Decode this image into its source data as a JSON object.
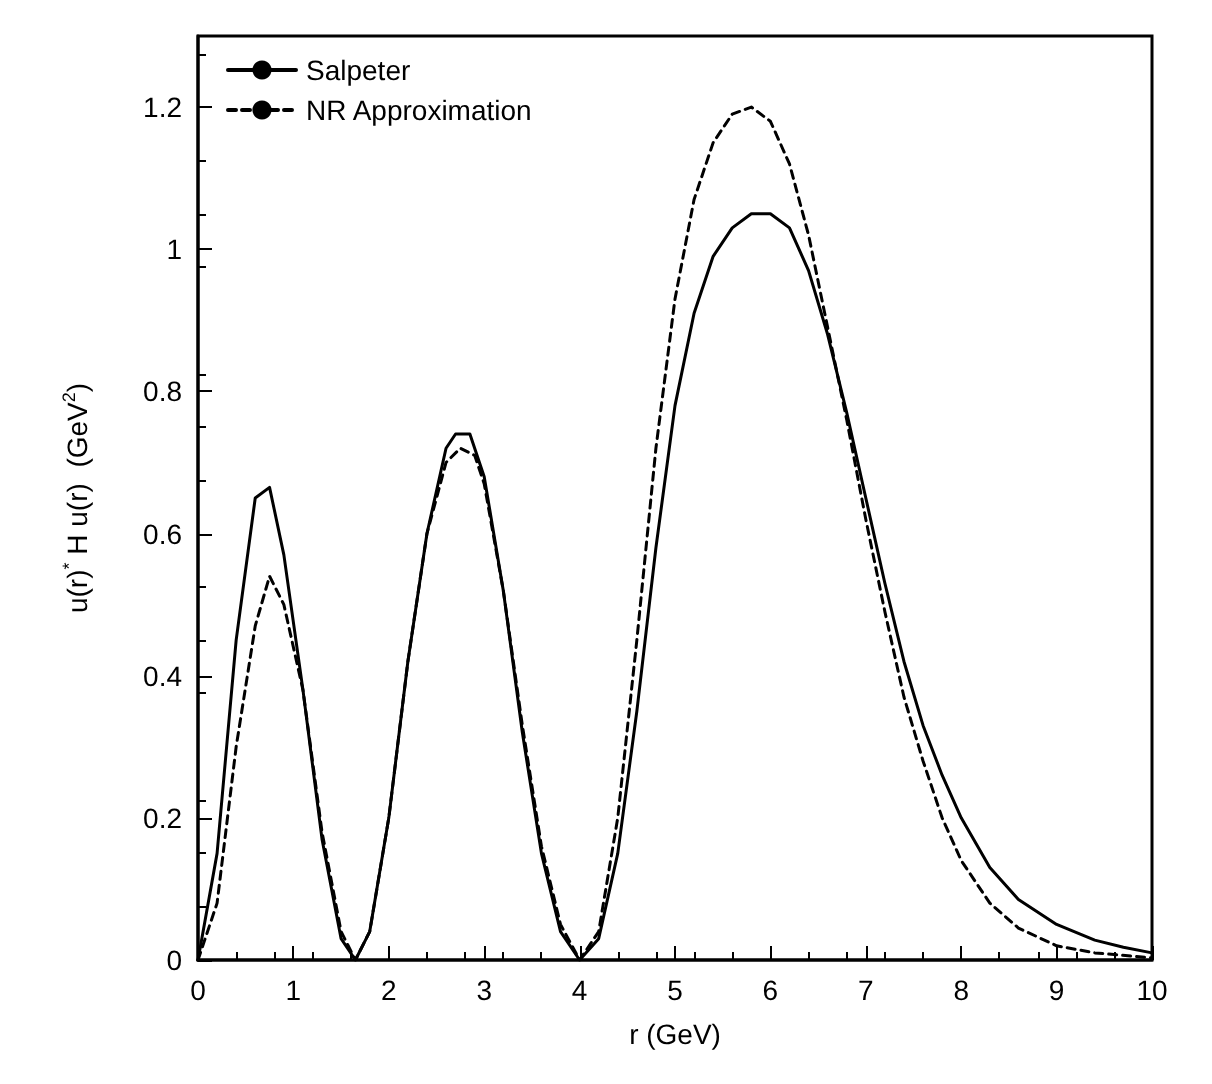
{
  "chart_data": {
    "type": "line",
    "xlabel": "r (GeV)",
    "ylabel": "u(r)$^{*}$ H u(r)  (GeV$^{2}$)",
    "xlim": [
      0,
      10
    ],
    "xticks": [
      0,
      1,
      2,
      3,
      4,
      5,
      6,
      7,
      8,
      9,
      10
    ],
    "ylim": [
      0,
      1.3
    ],
    "yticks": [
      0,
      0.2,
      0.4,
      0.6,
      0.8,
      1,
      1.2
    ],
    "grid": false,
    "legend": "top left",
    "marker": "none",
    "series": [
      {
        "name": "Salpeter",
        "color": "#000000",
        "line_style": "solid",
        "x": [
          0,
          0.2,
          0.4,
          0.6,
          0.75,
          0.9,
          1.1,
          1.3,
          1.5,
          1.65,
          1.8,
          2.0,
          2.2,
          2.4,
          2.6,
          2.7,
          2.85,
          3.0,
          3.2,
          3.4,
          3.6,
          3.8,
          4.0,
          4.2,
          4.4,
          4.6,
          4.8,
          5.0,
          5.2,
          5.4,
          5.6,
          5.8,
          6.0,
          6.2,
          6.4,
          6.6,
          6.8,
          7.0,
          7.2,
          7.4,
          7.6,
          7.8,
          8.0,
          8.3,
          8.6,
          9.0,
          9.4,
          9.7,
          10
        ],
        "values": [
          0,
          0.15,
          0.45,
          0.65,
          0.665,
          0.57,
          0.38,
          0.17,
          0.03,
          0,
          0.04,
          0.2,
          0.42,
          0.6,
          0.72,
          0.74,
          0.74,
          0.68,
          0.52,
          0.32,
          0.15,
          0.04,
          0,
          0.03,
          0.15,
          0.35,
          0.58,
          0.78,
          0.91,
          0.99,
          1.03,
          1.05,
          1.05,
          1.03,
          0.97,
          0.88,
          0.77,
          0.65,
          0.53,
          0.42,
          0.33,
          0.26,
          0.2,
          0.13,
          0.085,
          0.05,
          0.028,
          0.018,
          0.01
        ]
      },
      {
        "name": "NR Approximation",
        "color": "#000000",
        "line_style": "dashed",
        "x": [
          0,
          0.2,
          0.4,
          0.6,
          0.75,
          0.9,
          1.1,
          1.3,
          1.5,
          1.65,
          1.8,
          2.0,
          2.2,
          2.4,
          2.6,
          2.75,
          2.9,
          3.0,
          3.2,
          3.4,
          3.6,
          3.8,
          4.0,
          4.2,
          4.4,
          4.6,
          4.8,
          5.0,
          5.2,
          5.4,
          5.6,
          5.8,
          6.0,
          6.2,
          6.4,
          6.6,
          6.8,
          7.0,
          7.2,
          7.4,
          7.6,
          7.8,
          8.0,
          8.3,
          8.6,
          9.0,
          9.4,
          10
        ],
        "values": [
          0,
          0.08,
          0.3,
          0.47,
          0.54,
          0.5,
          0.38,
          0.18,
          0.04,
          0,
          0.04,
          0.2,
          0.42,
          0.6,
          0.7,
          0.72,
          0.71,
          0.67,
          0.52,
          0.33,
          0.16,
          0.05,
          0,
          0.04,
          0.2,
          0.45,
          0.72,
          0.93,
          1.07,
          1.15,
          1.19,
          1.2,
          1.18,
          1.12,
          1.02,
          0.89,
          0.76,
          0.62,
          0.49,
          0.37,
          0.28,
          0.2,
          0.14,
          0.08,
          0.045,
          0.02,
          0.01,
          0.003
        ]
      }
    ]
  }
}
